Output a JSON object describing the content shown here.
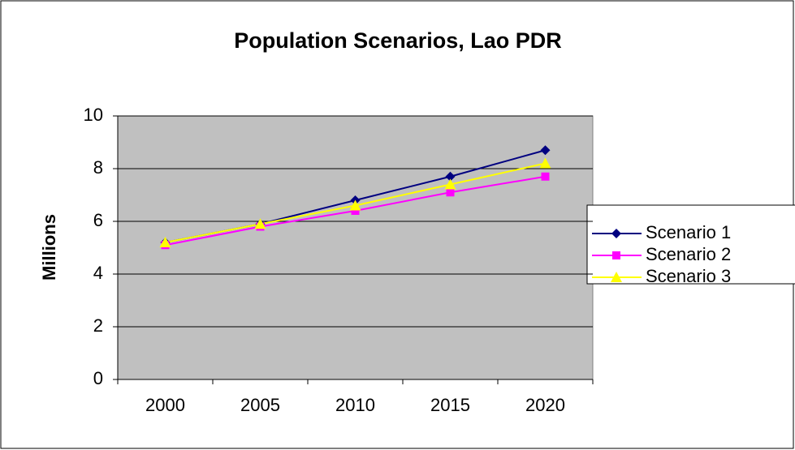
{
  "chart_data": {
    "type": "line",
    "title": "Population Scenarios, Lao PDR",
    "y_label": "Millions",
    "categories": [
      "2000",
      "2005",
      "2010",
      "2015",
      "2020"
    ],
    "series": [
      {
        "name": "Scenario 1",
        "color": "#000080",
        "marker": "diamond",
        "values": [
          5.2,
          5.9,
          6.8,
          7.7,
          8.7
        ]
      },
      {
        "name": "Scenario 2",
        "color": "#ff00ff",
        "marker": "square",
        "values": [
          5.1,
          5.8,
          6.4,
          7.1,
          7.7
        ]
      },
      {
        "name": "Scenario 3",
        "color": "#ffff00",
        "marker": "triangle",
        "values": [
          5.2,
          5.9,
          6.6,
          7.4,
          8.2
        ]
      }
    ],
    "ylim": [
      0,
      10
    ],
    "yticks": [
      0,
      2,
      4,
      6,
      8,
      10
    ],
    "grid": true,
    "legend": "right"
  }
}
